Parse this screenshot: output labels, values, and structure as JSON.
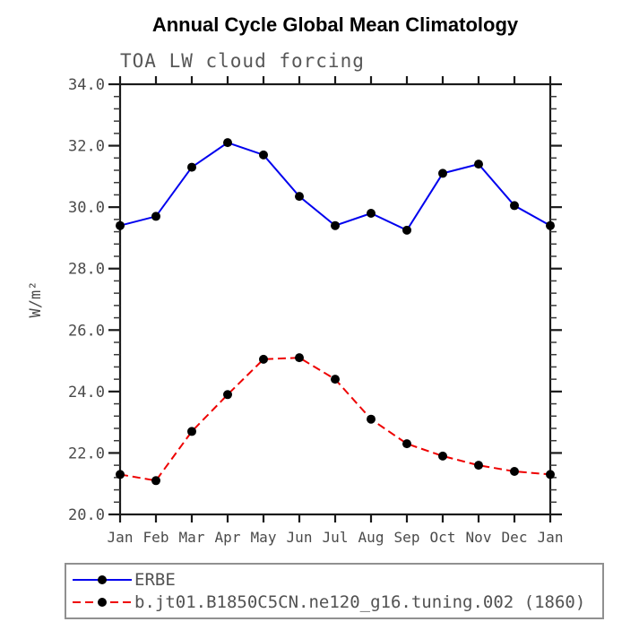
{
  "title": "Annual Cycle Global Mean Climatology",
  "subtitle": "TOA LW cloud forcing",
  "chart_data": {
    "type": "line",
    "x": [
      "Jan",
      "Feb",
      "Mar",
      "Apr",
      "May",
      "Jun",
      "Jul",
      "Aug",
      "Sep",
      "Oct",
      "Nov",
      "Dec",
      "Jan"
    ],
    "series": [
      {
        "name": "ERBE",
        "color": "#0000ee",
        "style": "solid",
        "marker": "filled-circle",
        "values": [
          29.4,
          29.7,
          31.3,
          32.1,
          31.7,
          30.35,
          29.4,
          29.8,
          29.25,
          31.1,
          31.4,
          30.05,
          29.4
        ]
      },
      {
        "name": "b.jt01.B1850C5CN.ne120_g16.tuning.002 (1860)",
        "color": "#ee0000",
        "style": "dashed",
        "dash": "9 5",
        "marker": "filled-circle",
        "values": [
          21.3,
          21.1,
          22.7,
          23.9,
          25.05,
          25.1,
          24.4,
          23.1,
          22.3,
          21.9,
          21.6,
          21.4,
          21.3
        ]
      }
    ],
    "xlabel": "",
    "ylabel": "W/m²",
    "ylim": [
      20,
      34
    ],
    "ytick_step": 2,
    "ytick_minor_step": 0.4,
    "ytick_labels": [
      "20.0",
      "22.0",
      "24.0",
      "26.0",
      "28.0",
      "30.0",
      "32.0",
      "34.0"
    ],
    "grid": false,
    "legend_position": "bottom-left-box",
    "marker_color": "#000000",
    "axis_color": "#1a1a1a"
  }
}
